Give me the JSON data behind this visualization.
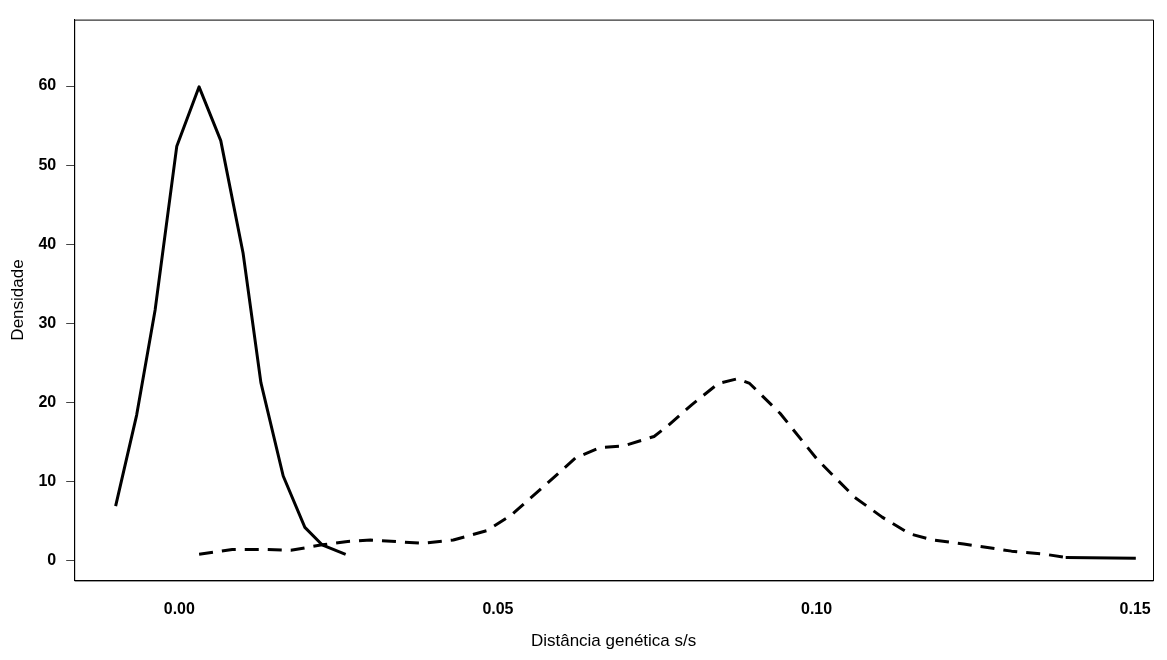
{
  "chart_data": {
    "type": "line",
    "xlabel": "Distância genética s/s",
    "ylabel": "Densidade",
    "xlim": [
      -0.0165,
      0.1528
    ],
    "xticks": [
      {
        "value": 0,
        "label": "0.00"
      },
      0.05,
      {
        "value": 0.1,
        "label": "0.10"
      },
      0.15
    ],
    "ylim": [
      -2.5,
      68.4
    ],
    "yticks": [
      0,
      10,
      20,
      30,
      40,
      50,
      60
    ],
    "legend": false,
    "marker": "none",
    "series": [
      {
        "color": "#000000",
        "line_style": "solid",
        "x": [
          -0.01,
          -0.0067,
          -0.0038,
          -0.0004,
          0.0031,
          0.0065,
          0.01,
          0.0128,
          0.0163,
          0.0197,
          0.0224,
          0.0261
        ],
        "values": [
          6.9,
          18.4,
          31.7,
          52.4,
          59.9,
          53.1,
          38.9,
          22.5,
          10.7,
          4.2,
          2.0,
          0.8
        ]
      },
      {
        "color": "#000000",
        "line_style": "dashed",
        "x": [
          0.0031,
          0.0083,
          0.0138,
          0.0175,
          0.0224,
          0.0261,
          0.03,
          0.0382,
          0.043,
          0.0483,
          0.052,
          0.0579,
          0.0622,
          0.066,
          0.0697,
          0.0745,
          0.0766,
          0.0804,
          0.0846,
          0.0876,
          0.0895,
          0.0943,
          0.1001,
          0.106,
          0.1103,
          0.1146,
          0.1183,
          0.1231,
          0.1306,
          0.1359,
          0.1391,
          0.1501
        ],
        "values": [
          0.8,
          1.4,
          1.4,
          1.3,
          2.0,
          2.4,
          2.6,
          2.2,
          2.6,
          3.8,
          5.7,
          9.9,
          13.0,
          14.3,
          14.5,
          15.7,
          17.0,
          19.7,
          22.4,
          23.0,
          22.4,
          18.6,
          12.8,
          8.0,
          5.5,
          3.4,
          2.6,
          2.1,
          1.2,
          0.8,
          0.4,
          0.3
        ]
      }
    ]
  }
}
